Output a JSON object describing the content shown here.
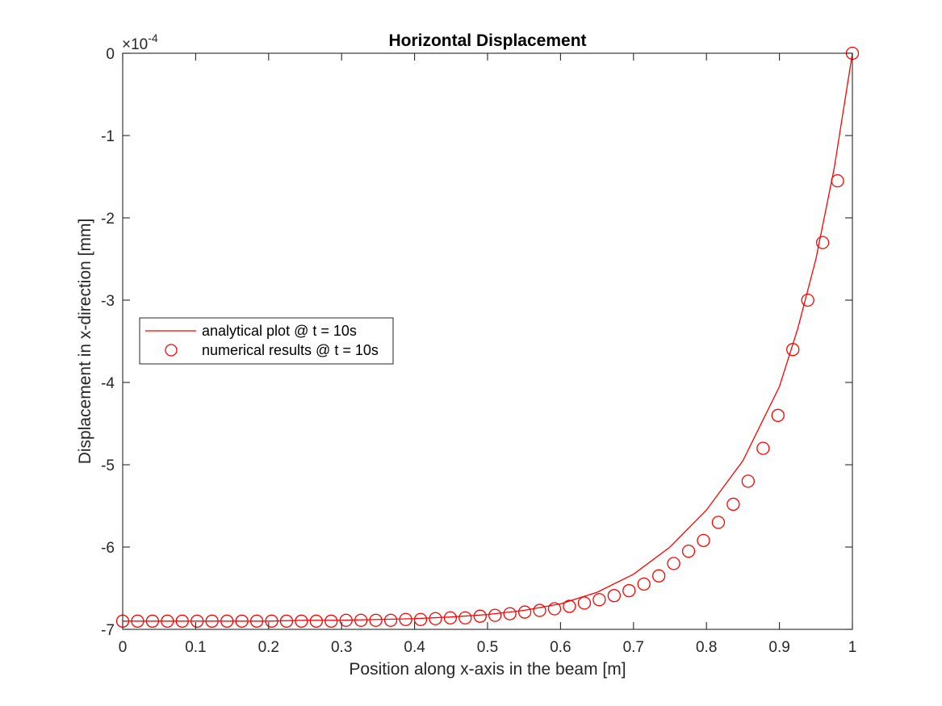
{
  "chart_data": {
    "type": "line",
    "title": "Horizontal Displacement",
    "xlabel": "Position along x-axis in the beam [m]",
    "ylabel": "Displacement in x-direction [mm]",
    "y_exponent": {
      "base": "×10",
      "power": "-4"
    },
    "xlim": [
      0,
      1
    ],
    "ylim": [
      -7,
      0
    ],
    "xticks": [
      0,
      0.1,
      0.2,
      0.3,
      0.4,
      0.5,
      0.6,
      0.7,
      0.8,
      0.9,
      1
    ],
    "xtick_labels": [
      "0",
      "0.1",
      "0.2",
      "0.3",
      "0.4",
      "0.5",
      "0.6",
      "0.7",
      "0.8",
      "0.9",
      "1"
    ],
    "yticks": [
      -7,
      -6,
      -5,
      -4,
      -3,
      -2,
      -1,
      0
    ],
    "ytick_labels": [
      "-7",
      "-6",
      "-5",
      "-4",
      "-3",
      "-2",
      "-1",
      "0"
    ],
    "grid": false,
    "legend_position": "middle-left",
    "series": [
      {
        "name": "analytical plot @ t = 10s",
        "style": "line",
        "color": "#ff0000",
        "x": [
          0,
          0.05,
          0.1,
          0.15,
          0.2,
          0.25,
          0.3,
          0.35,
          0.4,
          0.45,
          0.5,
          0.55,
          0.6,
          0.65,
          0.7,
          0.75,
          0.8,
          0.85,
          0.9,
          0.925,
          0.95,
          0.975,
          1
        ],
        "y": [
          -6.9,
          -6.9,
          -6.9,
          -6.9,
          -6.9,
          -6.89,
          -6.89,
          -6.88,
          -6.87,
          -6.85,
          -6.82,
          -6.77,
          -6.69,
          -6.55,
          -6.33,
          -6.0,
          -5.55,
          -4.95,
          -4.05,
          -3.35,
          -2.5,
          -1.4,
          0
        ]
      },
      {
        "name": "numerical results @ t = 10s",
        "style": "markers",
        "marker": "circle",
        "color": "#ff0000",
        "x": [
          0,
          0.0204,
          0.0408,
          0.0612,
          0.0816,
          0.102,
          0.1224,
          0.1429,
          0.1633,
          0.1837,
          0.2041,
          0.2245,
          0.2449,
          0.2653,
          0.2857,
          0.3061,
          0.3265,
          0.3469,
          0.3673,
          0.3878,
          0.4082,
          0.4286,
          0.449,
          0.4694,
          0.4898,
          0.5102,
          0.5306,
          0.551,
          0.5714,
          0.5918,
          0.6122,
          0.6327,
          0.6531,
          0.6735,
          0.6939,
          0.7143,
          0.7347,
          0.7551,
          0.7755,
          0.7959,
          0.8163,
          0.8367,
          0.8571,
          0.8776,
          0.898,
          0.9184,
          0.9388,
          0.9592,
          0.9796,
          1
        ],
        "y": [
          -6.9,
          -6.9,
          -6.9,
          -6.9,
          -6.9,
          -6.9,
          -6.9,
          -6.9,
          -6.9,
          -6.9,
          -6.9,
          -6.9,
          -6.9,
          -6.9,
          -6.9,
          -6.89,
          -6.89,
          -6.89,
          -6.89,
          -6.88,
          -6.88,
          -6.87,
          -6.86,
          -6.86,
          -6.84,
          -6.83,
          -6.81,
          -6.79,
          -6.77,
          -6.75,
          -6.72,
          -6.68,
          -6.64,
          -6.59,
          -6.53,
          -6.45,
          -6.35,
          -6.2,
          -6.05,
          -5.92,
          -5.7,
          -5.48,
          -5.2,
          -4.8,
          -4.4,
          -3.6,
          -3.0,
          -2.3,
          -1.55,
          0
        ]
      }
    ]
  }
}
